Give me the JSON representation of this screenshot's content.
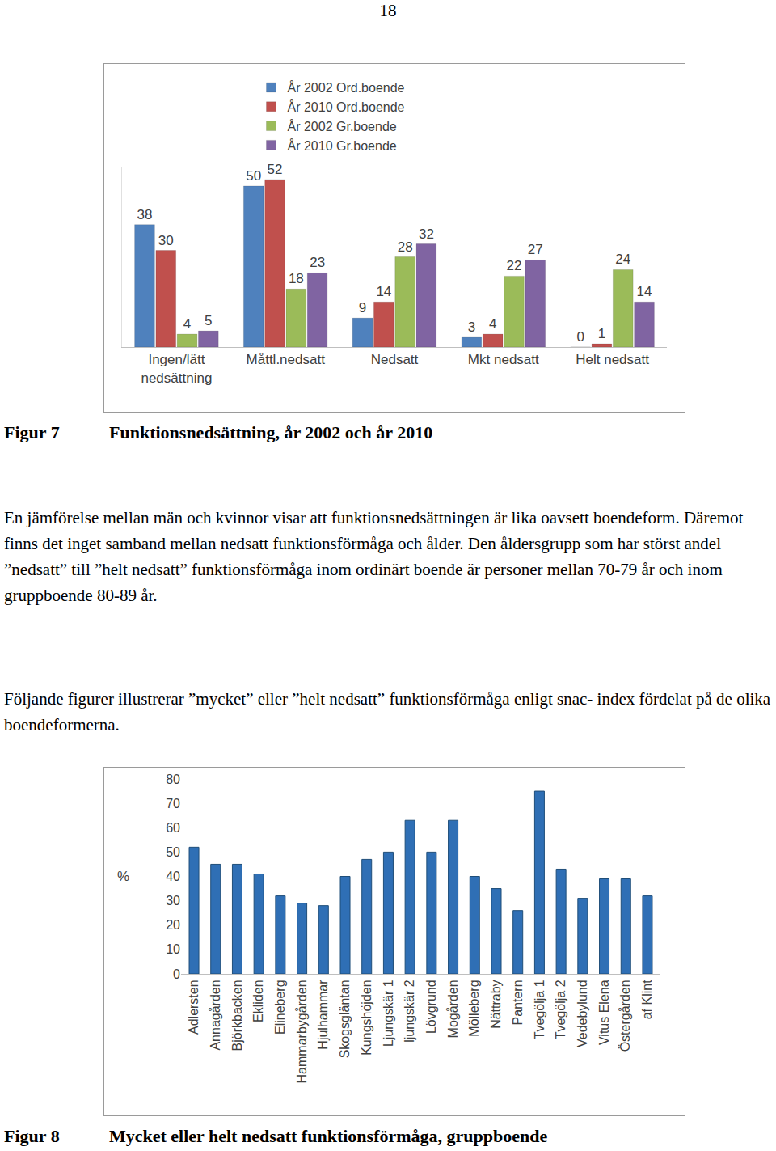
{
  "page_number": "18",
  "chart_data": [
    {
      "type": "bar",
      "categories": [
        "Ingen/lätt\nnedsättning",
        "Måttl.nedsatt",
        "Nedsatt",
        "Mkt nedsatt",
        "Helt nedsatt"
      ],
      "series": [
        {
          "name": "År 2002 Ord.boende",
          "color": "#4f81bd",
          "values": [
            38,
            50,
            9,
            3,
            0
          ]
        },
        {
          "name": "År 2010 Ord.boende",
          "color": "#c0504d",
          "values": [
            30,
            52,
            14,
            4,
            1
          ]
        },
        {
          "name": "År 2002 Gr.boende",
          "color": "#9bbb59",
          "values": [
            4,
            18,
            28,
            22,
            24
          ]
        },
        {
          "name": "År 2010 Gr.boende",
          "color": "#8064a2",
          "values": [
            5,
            23,
            32,
            27,
            14
          ]
        }
      ],
      "ylim": [
        0,
        56
      ],
      "data_labels": true,
      "tick_labels": "x",
      "legend": "top",
      "grid": false
    },
    {
      "type": "bar",
      "y_label": "%",
      "categories": [
        "Adlersten",
        "Annagården",
        "Björkbacken",
        "Ekliden",
        "Elineberg",
        "Hammarbygården",
        "Hjulhammar",
        "Skogsgläntan",
        "Kungshöjden",
        "Ljungskär 1",
        "ljungskär 2",
        "Lövgrund",
        "Mogården",
        "Mölleberg",
        "Nättraby",
        "Pantern",
        "Tvegölja 1",
        "Tvegölja 2",
        "Vedebylund",
        "Vitus Elena",
        "Östergården",
        "af Klint"
      ],
      "values": [
        52,
        45,
        45,
        41,
        32,
        29,
        28,
        40,
        47,
        50,
        63,
        50,
        63,
        40,
        35,
        26,
        75,
        43,
        31,
        39,
        39,
        32
      ],
      "color": "#2f6fb5",
      "ylim": [
        0,
        80
      ],
      "yticks": [
        0,
        10,
        20,
        30,
        40,
        50,
        60,
        70,
        80
      ],
      "grid": false
    }
  ],
  "captions": [
    {
      "label": "Figur 7",
      "text": "Funktionsnedsättning, år 2002 och år 2010"
    },
    {
      "label": "Figur 8",
      "text": "Mycket eller helt nedsatt funktionsförmåga, gruppboende"
    }
  ],
  "paragraphs": [
    "En jämförelse mellan män och kvinnor visar att funktionsnedsättningen är lika oavsett boendeform. Däremot finns det inget samband mellan nedsatt funktionsförmåga och ålder. Den åldersgrupp som har störst andel ”nedsatt” till ”helt nedsatt” funktionsförmåga inom ordinärt boende är personer mellan 70-79 år och inom gruppboende 80-89 år.",
    "Följande figurer illustrerar ”mycket” eller ”helt nedsatt” funktionsförmåga enligt snac- index fördelat på de olika boendeformerna."
  ]
}
